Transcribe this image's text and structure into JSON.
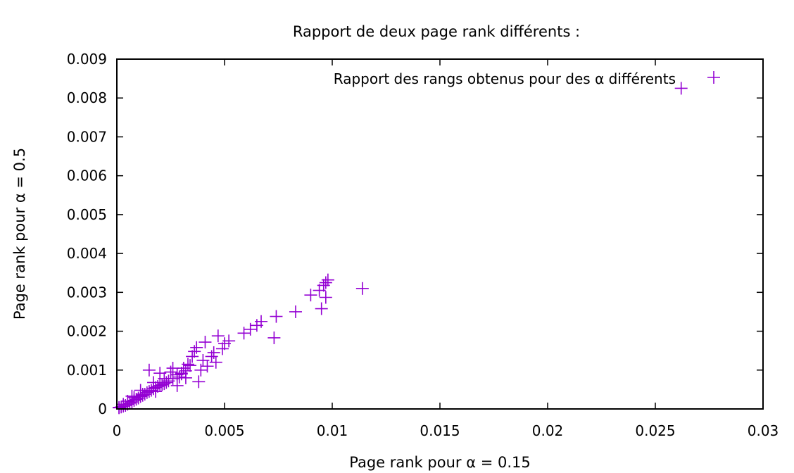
{
  "chart_data": {
    "type": "scatter",
    "title": "Rapport de deux page rank différents :",
    "xlabel": "Page rank pour α = 0.15",
    "ylabel": "Page rank pour α = 0.5",
    "xlim": [
      0,
      0.03
    ],
    "ylim": [
      0,
      0.009
    ],
    "x_ticks": [
      "0",
      "0.005",
      "0.01",
      "0.015",
      "0.02",
      "0.025",
      "0.03"
    ],
    "y_ticks": [
      "0",
      "0.001",
      "0.002",
      "0.003",
      "0.004",
      "0.005",
      "0.006",
      "0.007",
      "0.008",
      "0.009"
    ],
    "grid": false,
    "legend_position": "top-right",
    "marker_color": "#9400d3",
    "series": [
      {
        "name": "Rapport des rangs obtenus pour des α différents",
        "marker": "plus",
        "x": [
          0.0262,
          0.0114,
          0.0098,
          0.0097,
          0.0096,
          0.0097,
          0.0095,
          0.009,
          0.0094,
          0.0083,
          0.0074,
          0.0073,
          0.0067,
          0.0065,
          0.0062,
          0.0059,
          0.0052,
          0.005,
          0.0049,
          0.0046,
          0.0045,
          0.0042,
          0.0044,
          0.0039,
          0.0037,
          0.0041,
          0.0036,
          0.004,
          0.0047,
          0.0035,
          0.0033,
          0.0031,
          0.0032,
          0.003,
          0.0028,
          0.0029,
          0.0026,
          0.0024,
          0.0025,
          0.0023,
          0.0022,
          0.0021,
          0.002,
          0.0019,
          0.0018,
          0.0017,
          0.0016,
          0.0015,
          0.0014,
          0.0013,
          0.0012,
          0.0011,
          0.001,
          0.0009,
          0.0008,
          0.0007,
          0.0006,
          0.0005,
          0.0004,
          0.0003,
          0.0002,
          0.0001,
          0.0015,
          0.0026,
          0.002,
          0.0032,
          0.0038,
          0.0028,
          0.0018,
          0.0012,
          0.0008,
          0.0005,
          0.0003,
          0.0001,
          0.0034,
          0.003,
          0.0022,
          0.0017,
          0.0011,
          0.0007
        ],
        "y": [
          0.00825,
          0.0031,
          0.00332,
          0.00325,
          0.00318,
          0.00287,
          0.00258,
          0.00293,
          0.00305,
          0.0025,
          0.00238,
          0.00183,
          0.00225,
          0.00215,
          0.00205,
          0.00195,
          0.00175,
          0.00168,
          0.00155,
          0.0012,
          0.00145,
          0.0011,
          0.00135,
          0.001,
          0.00158,
          0.00172,
          0.00148,
          0.00125,
          0.00188,
          0.00135,
          0.00115,
          0.00105,
          0.00098,
          0.0009,
          0.00088,
          0.00082,
          0.00078,
          0.00072,
          0.00095,
          0.00068,
          0.00065,
          0.00062,
          0.0006,
          0.00058,
          0.00055,
          0.00052,
          0.00048,
          0.00045,
          0.00042,
          0.00038,
          0.00035,
          0.00032,
          0.00028,
          0.00025,
          0.00022,
          0.00018,
          0.00015,
          0.00012,
          9e-05,
          7e-05,
          5e-05,
          3e-05,
          0.001,
          0.00105,
          0.00092,
          0.0008,
          0.0007,
          0.0006,
          0.00045,
          0.00038,
          0.0003,
          0.0002,
          0.00012,
          4e-05,
          0.00112,
          0.00092,
          0.00078,
          0.00068,
          0.00048,
          0.00033
        ]
      }
    ]
  }
}
